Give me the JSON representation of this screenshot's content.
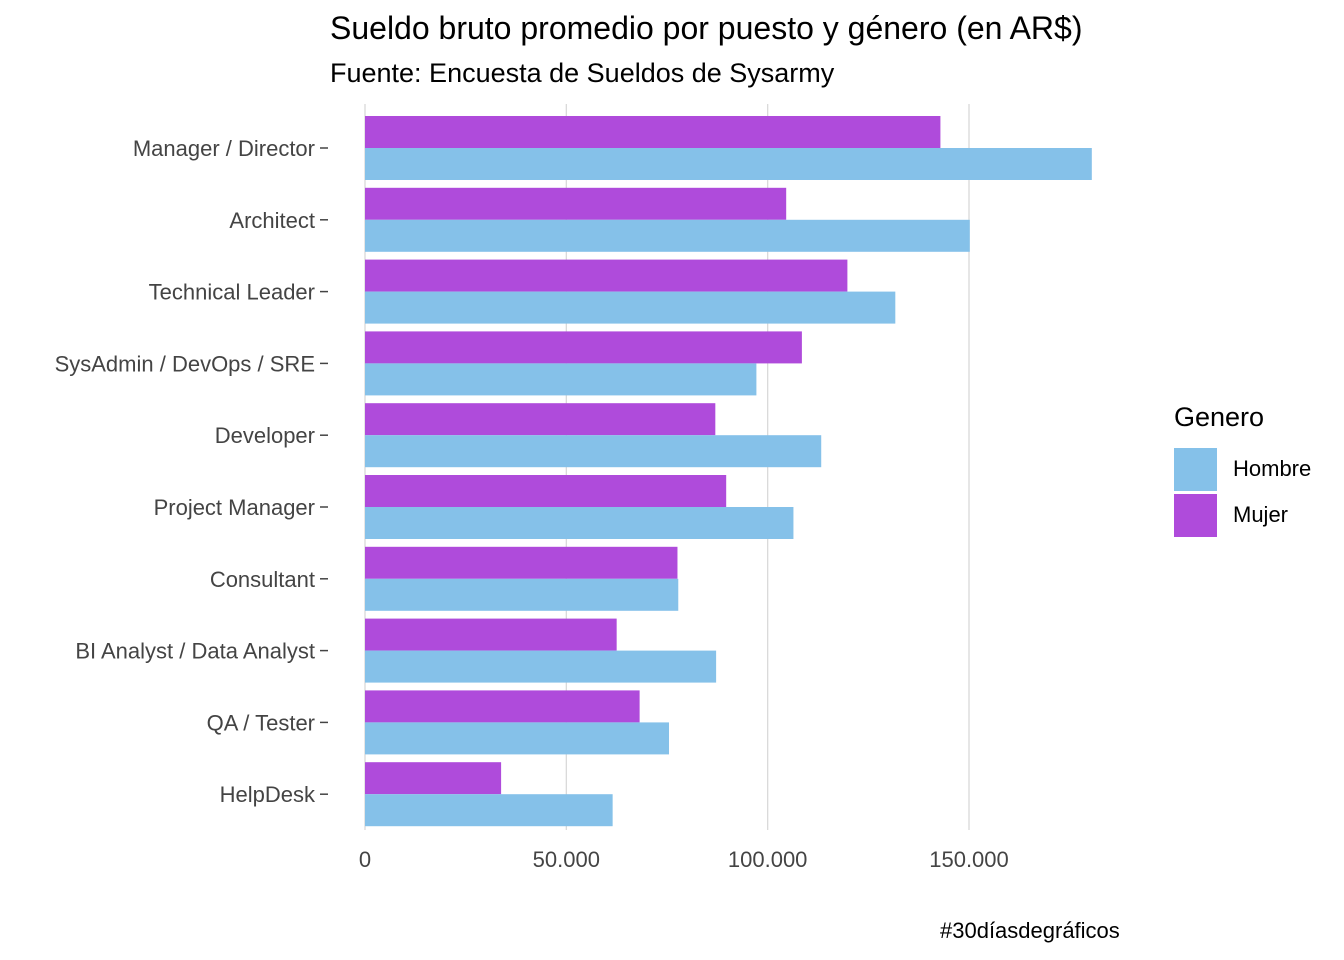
{
  "chart_data": {
    "type": "bar",
    "orientation": "horizontal",
    "title": "Sueldo bruto promedio por puesto y género (en AR$)",
    "subtitle": "Fuente: Encuesta de Sueldos de Sysarmy",
    "caption": "#30díasdegráficos",
    "xlabel": "",
    "ylabel": "",
    "xlim": [
      0,
      185000
    ],
    "x_ticks": [
      0,
      50000,
      100000,
      150000
    ],
    "x_tick_labels": [
      "0",
      "50.000",
      "100.000",
      "150.000"
    ],
    "grid": "vertical",
    "legend_position": "right",
    "legend_title": "Genero",
    "categories": [
      "Manager / Director",
      "Architect",
      "Technical Leader",
      "SysAdmin / DevOps / SRE",
      "Developer",
      "Project Manager",
      "Consultant",
      "BI Analyst / Data Analyst",
      "QA / Tester",
      "HelpDesk"
    ],
    "series": [
      {
        "name": "Hombre",
        "color": "#85C1E9",
        "values": [
          180500,
          150200,
          131700,
          97200,
          113300,
          106400,
          77800,
          87200,
          75500,
          61500
        ]
      },
      {
        "name": "Mujer",
        "color": "#AF4BDB",
        "values": [
          142900,
          104600,
          119800,
          108500,
          87000,
          89700,
          77600,
          62500,
          68200,
          33800
        ]
      }
    ]
  }
}
